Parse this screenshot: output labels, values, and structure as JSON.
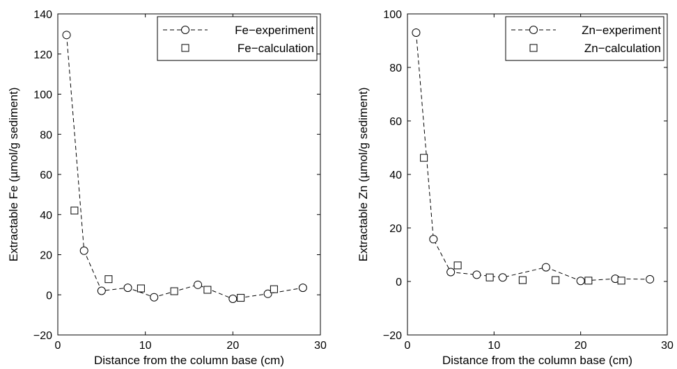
{
  "chart_data": [
    {
      "type": "line",
      "xlabel": "Distance from the column base (cm)",
      "ylabel": "Extractable Fe (µmol/g sediment)",
      "xlim": [
        0,
        30
      ],
      "ylim": [
        -20,
        140
      ],
      "xticks": [
        "0",
        "10",
        "20",
        "30"
      ],
      "yticks": [
        "−20",
        "0",
        "20",
        "40",
        "60",
        "80",
        "100",
        "120",
        "140"
      ],
      "grid": false,
      "legend_position": "top-right",
      "series": [
        {
          "name": "Fe−experiment",
          "style": "dashed line with circle markers",
          "x": [
            1,
            3,
            5,
            8,
            11,
            16,
            20,
            24,
            28
          ],
          "y": [
            129.5,
            22,
            2,
            3.5,
            -1.2,
            5,
            -2,
            0.5,
            3.5
          ]
        },
        {
          "name": "Fe−calculation",
          "style": "square markers",
          "x": [
            1.9,
            5.8,
            9.5,
            13.3,
            17.1,
            20.9,
            24.7
          ],
          "y": [
            42,
            7.8,
            3.2,
            1.8,
            2.5,
            -1.5,
            2.8
          ]
        }
      ]
    },
    {
      "type": "line",
      "xlabel": "Distance from the column base (cm)",
      "ylabel": "Extractable Zn (µmol/g sediment)",
      "xlim": [
        0,
        30
      ],
      "ylim": [
        -20,
        100
      ],
      "xticks": [
        "0",
        "10",
        "20",
        "30"
      ],
      "yticks": [
        "−20",
        "0",
        "20",
        "40",
        "60",
        "80",
        "100"
      ],
      "grid": false,
      "legend_position": "top-right",
      "series": [
        {
          "name": "Zn−experiment",
          "style": "dashed line with circle markers",
          "x": [
            1,
            3,
            5,
            8,
            11,
            16,
            20,
            24,
            28
          ],
          "y": [
            93,
            15.8,
            3.5,
            2.5,
            1.5,
            5.3,
            0.2,
            1,
            0.8
          ]
        },
        {
          "name": "Zn−calculation",
          "style": "square markers",
          "x": [
            1.9,
            5.8,
            9.5,
            13.3,
            17.1,
            20.9,
            24.7
          ],
          "y": [
            46.2,
            6,
            1.5,
            0.5,
            0.5,
            0.3,
            0.3
          ]
        }
      ]
    }
  ]
}
